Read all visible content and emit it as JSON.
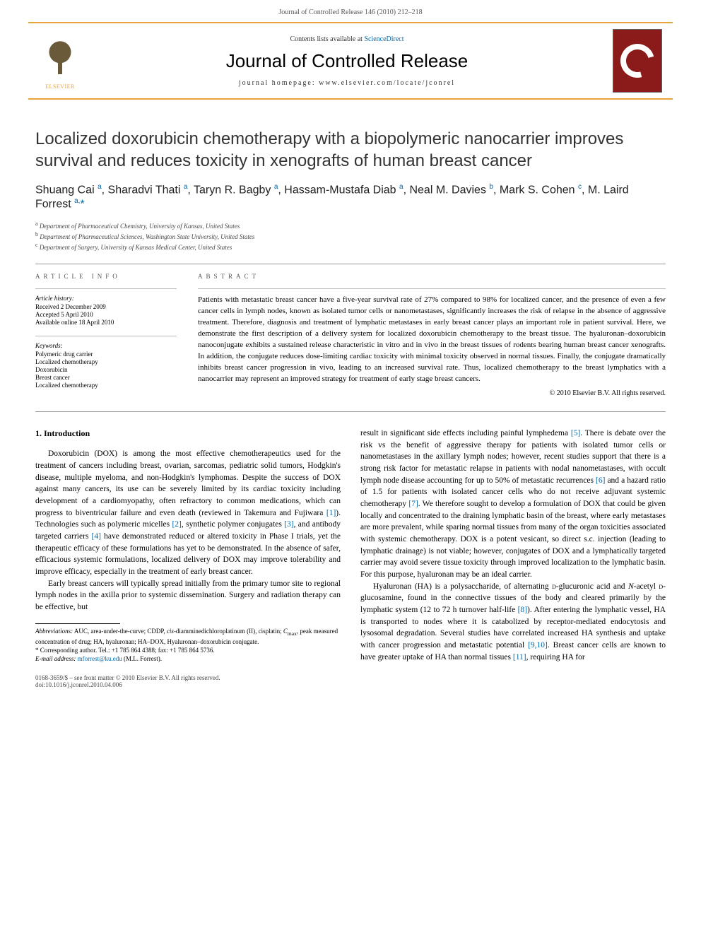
{
  "header": {
    "running": "Journal of Controlled Release 146 (2010) 212–218"
  },
  "banner": {
    "contents_prefix": "Contents lists available at ",
    "contents_link": "ScienceDirect",
    "journal": "Journal of Controlled Release",
    "homepage_prefix": "journal homepage: ",
    "homepage": "www.elsevier.com/locate/jconrel",
    "publisher": "ELSEVIER"
  },
  "title": "Localized doxorubicin chemotherapy with a biopolymeric nanocarrier improves survival and reduces toxicity in xenografts of human breast cancer",
  "authors_html": "Shuang Cai <sup>a</sup>, Sharadvi Thati <sup>a</sup>, Taryn R. Bagby <sup>a</sup>, Hassam-Mustafa Diab <sup>a</sup>, Neal M. Davies <sup>b</sup>, Mark S. Cohen <sup>c</sup>, M. Laird Forrest <sup>a,</sup><span class='corr'>*</span>",
  "affiliations": [
    {
      "sup": "a",
      "text": "Department of Pharmaceutical Chemistry, University of Kansas, United States"
    },
    {
      "sup": "b",
      "text": "Department of Pharmaceutical Sciences, Washington State University, United States"
    },
    {
      "sup": "c",
      "text": "Department of Surgery, University of Kansas Medical Center, United States"
    }
  ],
  "article_info": {
    "heading": "ARTICLE INFO",
    "history_label": "Article history:",
    "history": [
      "Received 2 December 2009",
      "Accepted 5 April 2010",
      "Available online 18 April 2010"
    ],
    "keywords_label": "Keywords:",
    "keywords": [
      "Polymeric drug carrier",
      "Localized chemotherapy",
      "Doxorubicin",
      "Breast cancer",
      "Localized chemotherapy"
    ]
  },
  "abstract": {
    "heading": "ABSTRACT",
    "text": "Patients with metastatic breast cancer have a five-year survival rate of 27% compared to 98% for localized cancer, and the presence of even a few cancer cells in lymph nodes, known as isolated tumor cells or nanometastases, significantly increases the risk of relapse in the absence of aggressive treatment. Therefore, diagnosis and treatment of lymphatic metastases in early breast cancer plays an important role in patient survival. Here, we demonstrate the first description of a delivery system for localized doxorubicin chemotherapy to the breast tissue. The hyaluronan–doxorubicin nanoconjugate exhibits a sustained release characteristic in vitro and in vivo in the breast tissues of rodents bearing human breast cancer xenografts. In addition, the conjugate reduces dose-limiting cardiac toxicity with minimal toxicity observed in normal tissues. Finally, the conjugate dramatically inhibits breast cancer progression in vivo, leading to an increased survival rate. Thus, localized chemotherapy to the breast lymphatics with a nanocarrier may represent an improved strategy for treatment of early stage breast cancers.",
    "copyright": "© 2010 Elsevier B.V. All rights reserved."
  },
  "intro": {
    "heading": "1. Introduction",
    "p1": "Doxorubicin (DOX) is among the most effective chemotherapeutics used for the treatment of cancers including breast, ovarian, sarcomas, pediatric solid tumors, Hodgkin's disease, multiple myeloma, and non-Hodgkin's lymphomas. Despite the success of DOX against many cancers, its use can be severely limited by its cardiac toxicity including development of a cardiomyopathy, often refractory to common medications, which can progress to biventricular failure and even death (reviewed in Takemura and Fujiwara [1]). Technologies such as polymeric micelles [2], synthetic polymer conjugates [3], and antibody targeted carriers [4] have demonstrated reduced or altered toxicity in Phase I trials, yet the therapeutic efficacy of these formulations has yet to be demonstrated. In the absence of safer, efficacious systemic formulations, localized delivery of DOX may improve tolerability and improve efficacy, especially in the treatment of early breast cancer.",
    "p2": "Early breast cancers will typically spread initially from the primary tumor site to regional lymph nodes in the axilla prior to systemic dissemination. Surgery and radiation therapy can be effective, but",
    "p3": "result in significant side effects including painful lymphedema [5]. There is debate over the risk vs the benefit of aggressive therapy for patients with isolated tumor cells or nanometastases in the axillary lymph nodes; however, recent studies support that there is a strong risk factor for metastatic relapse in patients with nodal nanometastases, with occult lymph node disease accounting for up to 50% of metastatic recurrences [6] and a hazard ratio of 1.5 for patients with isolated cancer cells who do not receive adjuvant systemic chemotherapy [7]. We therefore sought to develop a formulation of DOX that could be given locally and concentrated to the draining lymphatic basin of the breast, where early metastases are more prevalent, while sparing normal tissues from many of the organ toxicities associated with systemic chemotherapy. DOX is a potent vesicant, so direct s.c. injection (leading to lymphatic drainage) is not viable; however, conjugates of DOX and a lymphatically targeted carrier may avoid severe tissue toxicity through improved localization to the lymphatic basin. For this purpose, hyaluronan may be an ideal carrier.",
    "p4": "Hyaluronan (HA) is a polysaccharide, of alternating D-glucuronic acid and N-acetyl D-glucosamine, found in the connective tissues of the body and cleared primarily by the lymphatic system (12 to 72 h turnover half-life [8]). After entering the lymphatic vessel, HA is transported to nodes where it is catabolized by receptor-mediated endocytosis and lysosomal degradation. Several studies have correlated increased HA synthesis and uptake with cancer progression and metastatic potential [9,10]. Breast cancer cells are known to have greater uptake of HA than normal tissues [11], requiring HA for"
  },
  "footnotes": {
    "abbrev_label": "Abbreviations:",
    "abbrev": " AUC, area-under-the-curve; CDDP, cis-diamminedichloroplatinum (II), cisplatin; Cmax, peak measured concentration of drug; HA, hyaluronan; HA–DOX, Hyaluronan–doxorubicin conjugate.",
    "corr": "* Corresponding author. Tel.: +1 785 864 4388; fax: +1 785 864 5736.",
    "email_label": "E-mail address:",
    "email": "mforrest@ku.edu",
    "email_suffix": " (M.L. Forrest)."
  },
  "footer": {
    "line1": "0168-3659/$ – see front matter © 2010 Elsevier B.V. All rights reserved.",
    "doi": "doi:10.1016/j.jconrel.2010.04.006"
  },
  "colors": {
    "accent": "#e8a33d",
    "link": "#0066aa",
    "cover": "#8b1a1a",
    "text": "#000000",
    "muted": "#555555"
  },
  "typography": {
    "title_fontsize": 24,
    "journal_fontsize": 26,
    "body_fontsize": 11.5,
    "abstract_fontsize": 11,
    "info_fontsize": 9,
    "footnote_fontsize": 9
  }
}
